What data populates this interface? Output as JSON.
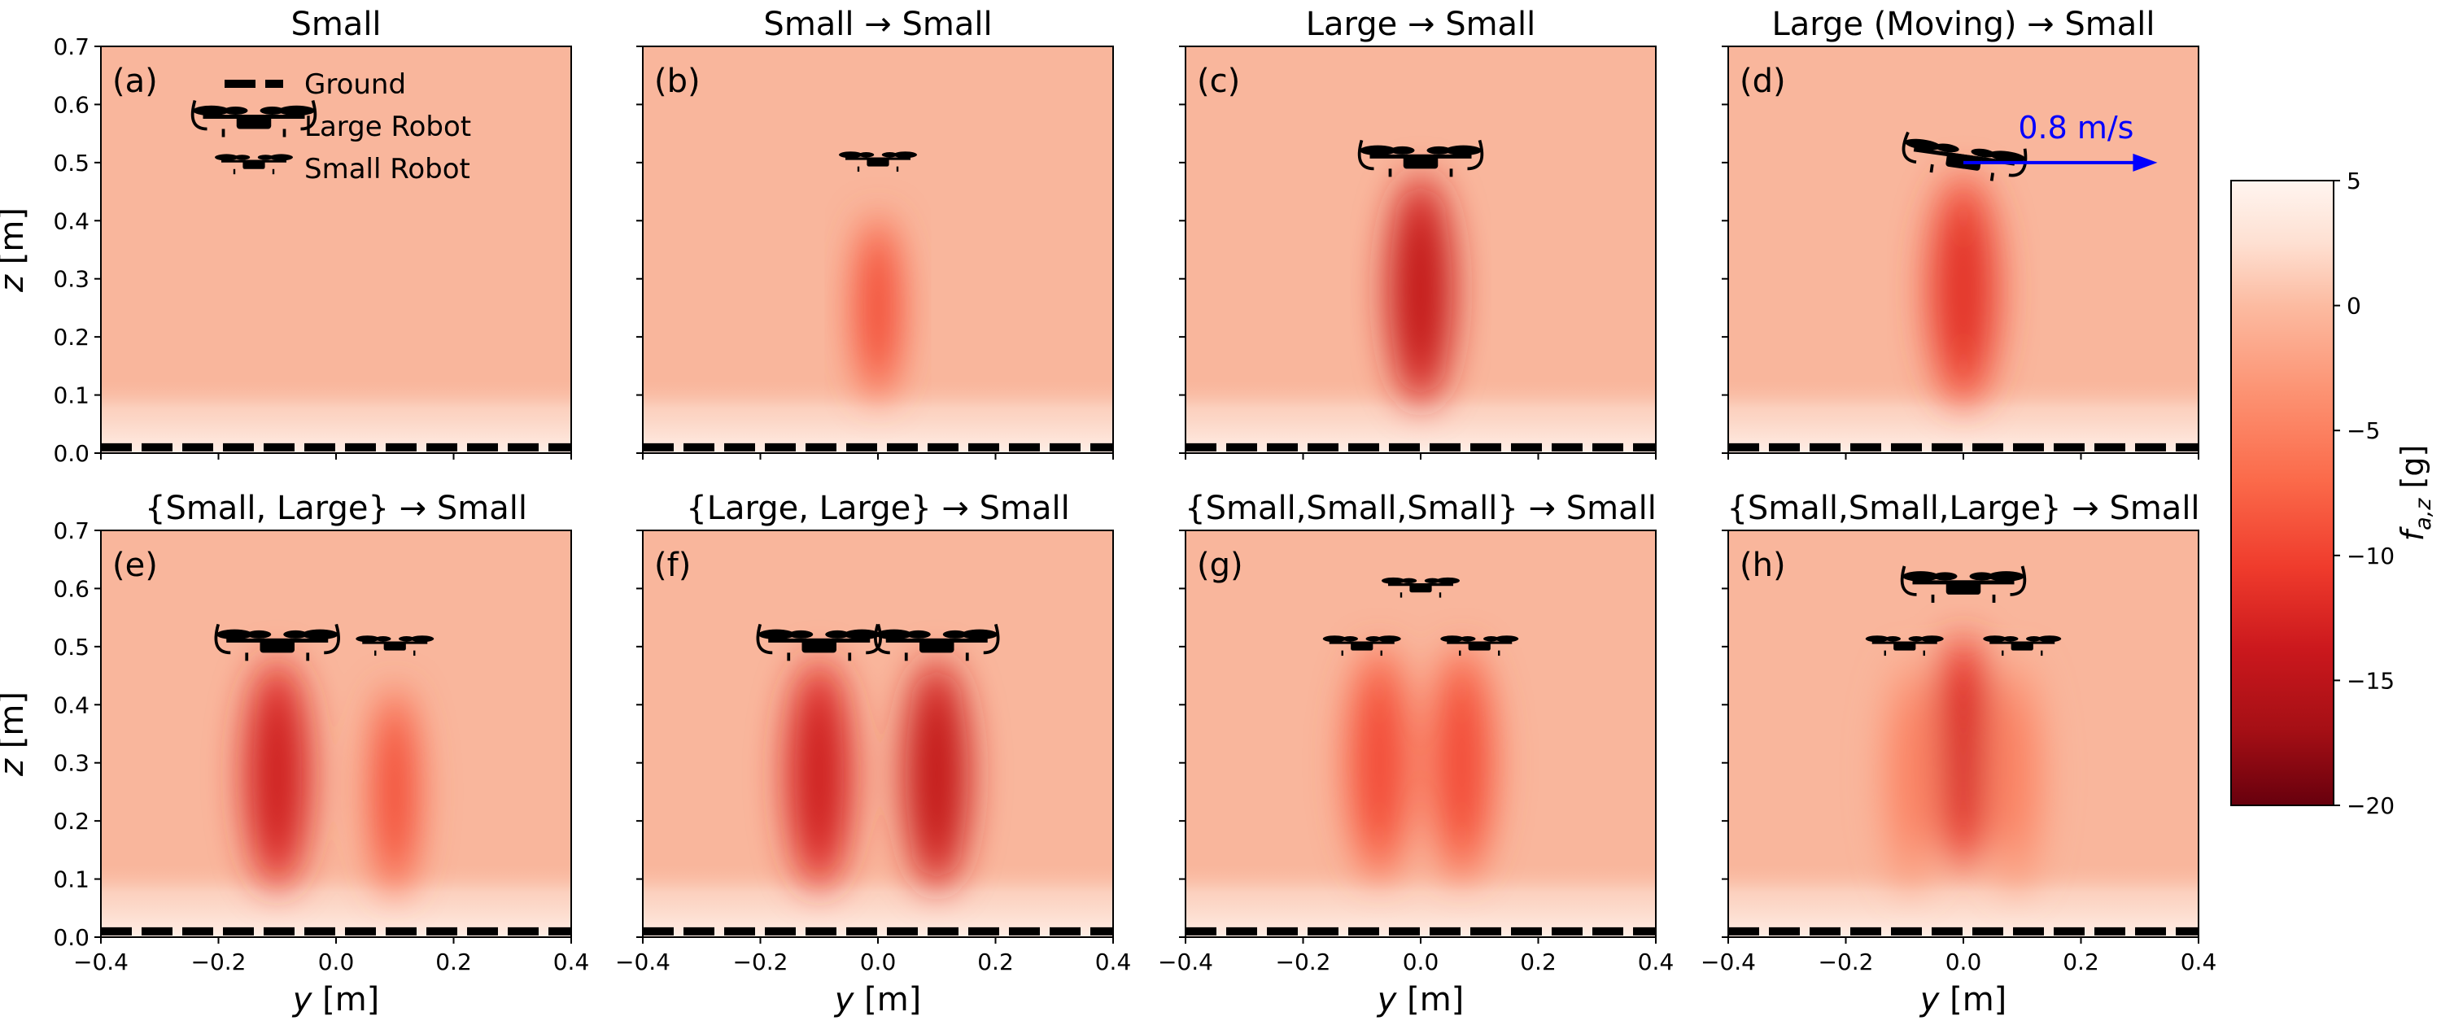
{
  "colors": {
    "heat_stops": [
      "#67000d",
      "#a50f15",
      "#cb181d",
      "#ef3b2c",
      "#fb6a4a",
      "#fc9272",
      "#fcbba1",
      "#fee0d2",
      "#fff5f0"
    ],
    "background": "#f9b69c",
    "arrow": "#0000ff",
    "ground": "#000000"
  },
  "chart_data": {
    "type": "heatmap",
    "xlabel": "y [m]",
    "ylabel": "z [m]",
    "xlim": [
      -0.4,
      0.4
    ],
    "ylim": [
      0.0,
      0.7
    ],
    "xticks": [
      -0.4,
      -0.2,
      0.0,
      0.2,
      0.4
    ],
    "yticks": [
      0.0,
      0.1,
      0.2,
      0.3,
      0.4,
      0.5,
      0.6,
      0.7
    ],
    "xtick_labels": [
      "−0.4",
      "−0.2",
      "0.0",
      "0.2",
      "0.4"
    ],
    "ytick_labels": [
      "0.0",
      "0.1",
      "0.2",
      "0.3",
      "0.4",
      "0.5",
      "0.6",
      "0.7"
    ],
    "colorbar": {
      "label": "f_{a,z} [g]",
      "label_main": "f",
      "label_sub": "a,z",
      "label_unit": " [g]",
      "vmin": -20,
      "vmax": 5,
      "ticks": [
        5,
        0,
        -5,
        -10,
        -15,
        -20
      ],
      "tick_labels": [
        "5",
        "0",
        "−5",
        "−10",
        "−15",
        "−20"
      ]
    },
    "legend": {
      "placement": "top-right of panel (a)",
      "entries": [
        {
          "label": "Ground",
          "symbol": "ground"
        },
        {
          "label": "Large Robot",
          "symbol": "large-robot"
        },
        {
          "label": "Small Robot",
          "symbol": "small-robot"
        }
      ]
    },
    "panels": [
      {
        "tag": "(a)",
        "title": "Small",
        "robots": [],
        "wake_peak": 0,
        "wakes": []
      },
      {
        "tag": "(b)",
        "title": "Small → Small",
        "robots": [
          {
            "size": "small",
            "y": 0.0,
            "z": 0.5
          }
        ],
        "wakes": [
          {
            "y": 0.0,
            "z": 0.25,
            "amp": -10,
            "wy": 0.045,
            "wz": 0.16
          }
        ]
      },
      {
        "tag": "(c)",
        "title": "Large → Small",
        "robots": [
          {
            "size": "large",
            "y": 0.0,
            "z": 0.5
          }
        ],
        "wakes": [
          {
            "y": 0.0,
            "z": 0.28,
            "amp": -15,
            "wy": 0.06,
            "wz": 0.2
          }
        ]
      },
      {
        "tag": "(d)",
        "title": "Large (Moving) → Small",
        "robots": [
          {
            "size": "large",
            "y": 0.0,
            "z": 0.5,
            "tilt": 8
          }
        ],
        "arrow": {
          "y_from": 0.0,
          "y_to": 0.33,
          "z": 0.5,
          "label": "0.8 m/s"
        },
        "wakes": [
          {
            "y": 0.0,
            "z": 0.28,
            "amp": -12,
            "wy": 0.065,
            "wz": 0.2
          }
        ]
      },
      {
        "tag": "(e)",
        "title": "{Small, Large} → Small",
        "robots": [
          {
            "size": "large",
            "y": -0.1,
            "z": 0.5
          },
          {
            "size": "small",
            "y": 0.1,
            "z": 0.5
          }
        ],
        "wakes": [
          {
            "y": -0.1,
            "z": 0.28,
            "amp": -14,
            "wy": 0.06,
            "wz": 0.2
          },
          {
            "y": 0.1,
            "z": 0.25,
            "amp": -10,
            "wy": 0.045,
            "wz": 0.18
          }
        ]
      },
      {
        "tag": "(f)",
        "title": "{Large, Large} → Small",
        "robots": [
          {
            "size": "large",
            "y": -0.1,
            "z": 0.5
          },
          {
            "size": "large",
            "y": 0.1,
            "z": 0.5
          }
        ],
        "wakes": [
          {
            "y": -0.1,
            "z": 0.28,
            "amp": -14,
            "wy": 0.06,
            "wz": 0.2
          },
          {
            "y": 0.1,
            "z": 0.28,
            "amp": -15,
            "wy": 0.06,
            "wz": 0.2
          }
        ]
      },
      {
        "tag": "(g)",
        "title": "{Small,Small,Small} → Small",
        "robots": [
          {
            "size": "small",
            "y": 0.0,
            "z": 0.6
          },
          {
            "size": "small",
            "y": -0.1,
            "z": 0.5
          },
          {
            "size": "small",
            "y": 0.1,
            "z": 0.5
          }
        ],
        "wakes": [
          {
            "y": -0.07,
            "z": 0.3,
            "amp": -10,
            "wy": 0.06,
            "wz": 0.2
          },
          {
            "y": 0.07,
            "z": 0.3,
            "amp": -10,
            "wy": 0.06,
            "wz": 0.2
          }
        ]
      },
      {
        "tag": "(h)",
        "title": "{Small,Small,Large} → Small",
        "robots": [
          {
            "size": "large",
            "y": 0.0,
            "z": 0.6
          },
          {
            "size": "small",
            "y": -0.1,
            "z": 0.5
          },
          {
            "size": "small",
            "y": 0.1,
            "z": 0.5
          }
        ],
        "wakes": [
          {
            "y": 0.0,
            "z": 0.32,
            "amp": -13,
            "wy": 0.06,
            "wz": 0.2
          },
          {
            "y": -0.09,
            "z": 0.28,
            "amp": -6,
            "wy": 0.05,
            "wz": 0.2
          },
          {
            "y": 0.09,
            "z": 0.28,
            "amp": -6,
            "wy": 0.05,
            "wz": 0.2
          }
        ]
      }
    ]
  }
}
